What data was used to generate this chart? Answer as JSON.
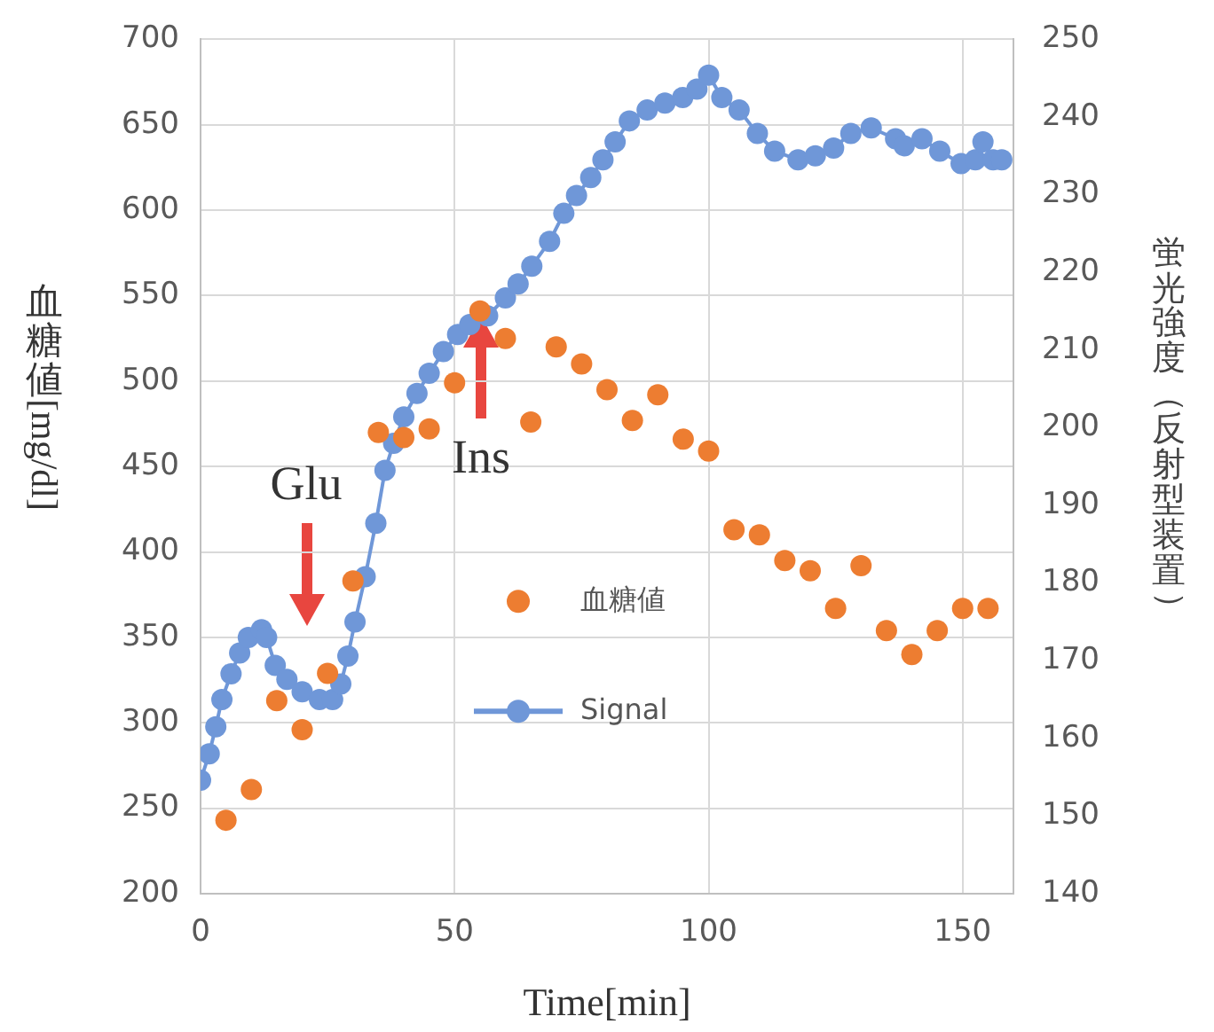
{
  "chart_data": {
    "type": "scatter",
    "xlabel": "Time[min]",
    "ylabel": "血糖値[mg/dl]",
    "y2label": "蛍光強度（反射型装置）",
    "xlim": [
      0,
      160
    ],
    "xticks": [
      0,
      50,
      100,
      150
    ],
    "ylim": [
      200,
      700
    ],
    "yticks": [
      200,
      250,
      300,
      350,
      400,
      450,
      500,
      550,
      600,
      650,
      700
    ],
    "y2lim": [
      140,
      250
    ],
    "y2ticks": [
      140,
      150,
      160,
      170,
      180,
      190,
      200,
      210,
      220,
      230,
      240,
      250
    ],
    "grid": true,
    "legend": "center",
    "marker": "circle",
    "annotations": [
      "Glu",
      "Ins"
    ],
    "series": [
      {
        "name": "血糖値",
        "color": "#ed7d31",
        "x": [
          5,
          10,
          15,
          20,
          25,
          30,
          35,
          40,
          45,
          50,
          55,
          60,
          65,
          70,
          75,
          80,
          85,
          90,
          95,
          100,
          105,
          110,
          115,
          120,
          125,
          130,
          135,
          140,
          145,
          150,
          155
        ],
        "values": [
          243,
          261,
          313,
          296,
          329,
          383,
          470,
          467,
          472,
          499,
          541,
          525,
          476,
          520,
          510,
          495,
          477,
          492,
          466,
          459,
          413,
          410,
          395,
          389,
          367,
          392,
          354,
          340,
          354,
          367,
          367
        ]
      },
      {
        "name": "Signal",
        "type": "line",
        "axis": "y2",
        "color": "#6f97d8",
        "x": [
          0,
          1.7,
          3,
          4.2,
          6,
          7.7,
          9.4,
          12,
          13,
          14.7,
          17,
          20,
          23.4,
          26,
          27.6,
          29,
          30.4,
          32.4,
          34.5,
          36.3,
          38,
          40,
          42.6,
          45,
          47.8,
          50.6,
          53,
          56.5,
          60,
          62.5,
          65.2,
          68.7,
          71.5,
          74,
          76.8,
          79.2,
          81.6,
          84.4,
          87.9,
          91.4,
          94.9,
          97.7,
          100,
          102.6,
          106,
          109.6,
          113,
          117.6,
          121,
          124.6,
          128,
          132,
          136.8,
          138.5,
          142,
          145.5,
          149.7,
          152.5,
          154,
          156,
          157.7
        ],
        "values": [
          154.6,
          158,
          161.5,
          165,
          168.3,
          171,
          173,
          174,
          173,
          169.4,
          167.6,
          166,
          165,
          165,
          167,
          170.6,
          175,
          180.8,
          187.7,
          194.5,
          198,
          201.4,
          204.4,
          207,
          209.8,
          212,
          213.3,
          214.4,
          216.7,
          218.5,
          220.8,
          224,
          227.6,
          229.9,
          232.2,
          234.5,
          236.8,
          239.5,
          240.9,
          241.8,
          242.5,
          243.6,
          245.4,
          242.5,
          240.9,
          237.9,
          235.6,
          234.5,
          235,
          236,
          237.9,
          238.6,
          237.2,
          236.3,
          237.2,
          235.6,
          234,
          234.5,
          236.8,
          234.5,
          234.5
        ]
      }
    ]
  }
}
